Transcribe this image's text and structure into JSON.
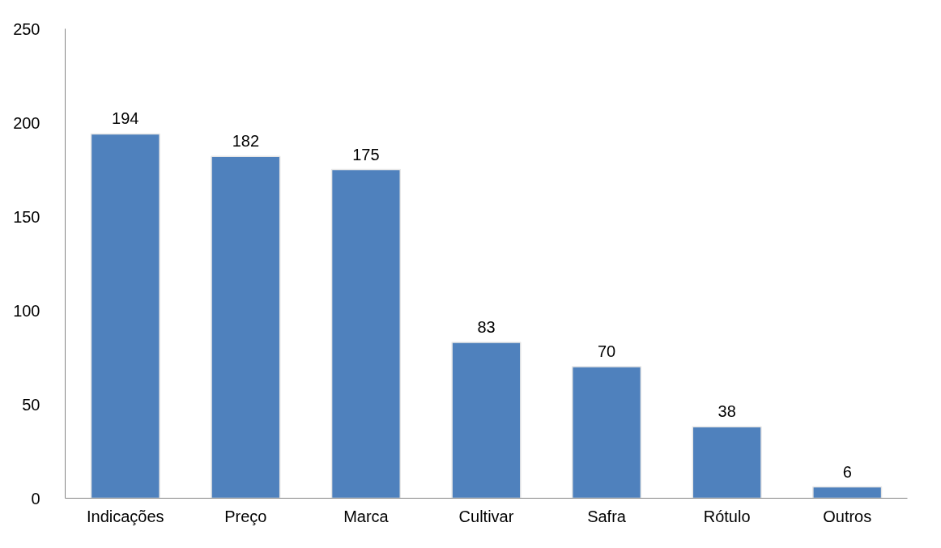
{
  "chart_data": {
    "type": "bar",
    "categories": [
      "Indicações",
      "Preço",
      "Marca",
      "Cultivar",
      "Safra",
      "Rótulo",
      "Outros"
    ],
    "values": [
      194,
      182,
      175,
      83,
      70,
      38,
      6
    ],
    "color": "#4f81bd",
    "ylim": [
      0,
      250
    ],
    "yticks": [
      0,
      50,
      100,
      150,
      200,
      250
    ],
    "data_labels": true,
    "grid": false
  }
}
